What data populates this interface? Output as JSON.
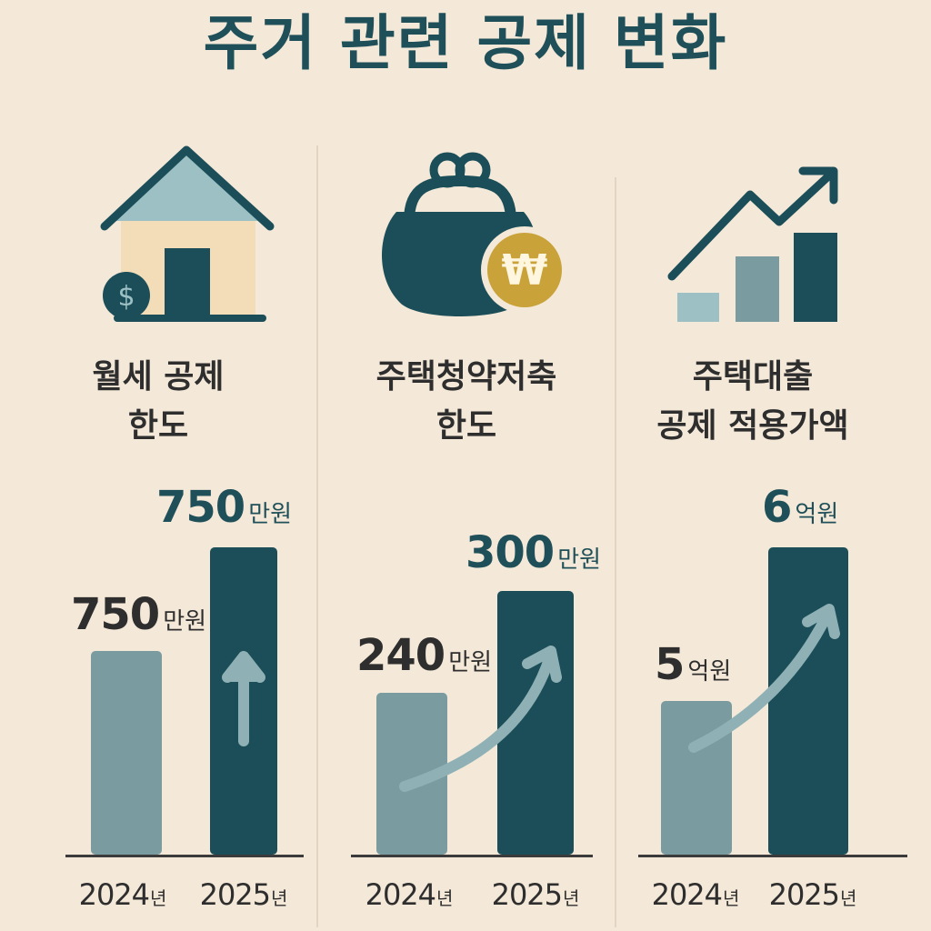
{
  "title": "주거 관련 공제 변화",
  "colors": {
    "prev_bar": "#7a9ba0",
    "next_bar": "#1b4e58",
    "arrow": "#8fb1b5",
    "accent": "#c9a23a"
  },
  "chart_data": [
    {
      "type": "bar",
      "title": "월세 공제\n한도",
      "title_lines": [
        "월세 공제",
        "한도"
      ],
      "icon": "house-icon",
      "categories": [
        "2024",
        "2025"
      ],
      "category_unit": "년",
      "values": [
        750,
        750
      ],
      "value_labels": [
        {
          "num": "750",
          "unit": "만원"
        },
        {
          "num": "750",
          "unit": "만원"
        }
      ],
      "arrow": "up"
    },
    {
      "type": "bar",
      "title": "주택청약저축\n한도",
      "title_lines": [
        "주택청약저축",
        "한도"
      ],
      "icon": "coin-purse-icon",
      "categories": [
        "2024",
        "2025"
      ],
      "category_unit": "년",
      "values": [
        240,
        300
      ],
      "value_labels": [
        {
          "num": "240",
          "unit": "만원"
        },
        {
          "num": "300",
          "unit": "만원"
        }
      ],
      "arrow": "curve"
    },
    {
      "type": "bar",
      "title": "주택대출\n공제 적용가액",
      "title_lines": [
        "주택대출",
        "공제 적용가액"
      ],
      "icon": "growth-chart-icon",
      "categories": [
        "2024",
        "2025"
      ],
      "category_unit": "년",
      "values": [
        5,
        6
      ],
      "value_labels": [
        {
          "num": "5",
          "unit": "억원"
        },
        {
          "num": "6",
          "unit": "억원"
        }
      ],
      "arrow": "curve"
    }
  ]
}
